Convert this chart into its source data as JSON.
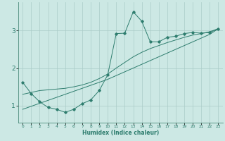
{
  "xlabel": "Humidex (Indice chaleur)",
  "background_color": "#cce8e4",
  "line_color": "#2e7d6e",
  "grid_color": "#aaccc8",
  "x_data": [
    0,
    1,
    2,
    3,
    4,
    5,
    6,
    7,
    8,
    9,
    10,
    11,
    12,
    13,
    14,
    15,
    16,
    17,
    18,
    19,
    20,
    21,
    22,
    23
  ],
  "y_main": [
    1.62,
    1.32,
    1.1,
    0.95,
    0.9,
    0.82,
    0.9,
    1.05,
    1.15,
    1.4,
    1.82,
    2.92,
    2.93,
    3.5,
    3.25,
    2.7,
    2.7,
    2.82,
    2.85,
    2.92,
    2.95,
    2.93,
    2.95,
    3.05
  ],
  "y_trend1": [
    0.9,
    0.98,
    1.06,
    1.14,
    1.22,
    1.3,
    1.38,
    1.46,
    1.54,
    1.62,
    1.7,
    1.8,
    1.9,
    2.0,
    2.1,
    2.2,
    2.3,
    2.4,
    2.5,
    2.6,
    2.7,
    2.8,
    2.9,
    3.05
  ],
  "y_trend2": [
    1.3,
    1.35,
    1.4,
    1.42,
    1.44,
    1.46,
    1.5,
    1.55,
    1.62,
    1.72,
    1.84,
    2.0,
    2.15,
    2.3,
    2.42,
    2.52,
    2.6,
    2.68,
    2.75,
    2.82,
    2.88,
    2.92,
    2.97,
    3.05
  ],
  "xlim": [
    -0.5,
    23.5
  ],
  "ylim": [
    0.55,
    3.75
  ],
  "yticks": [
    1,
    2,
    3
  ],
  "xticks": [
    0,
    1,
    2,
    3,
    4,
    5,
    6,
    7,
    8,
    9,
    10,
    11,
    12,
    13,
    14,
    15,
    16,
    17,
    18,
    19,
    20,
    21,
    22,
    23
  ]
}
